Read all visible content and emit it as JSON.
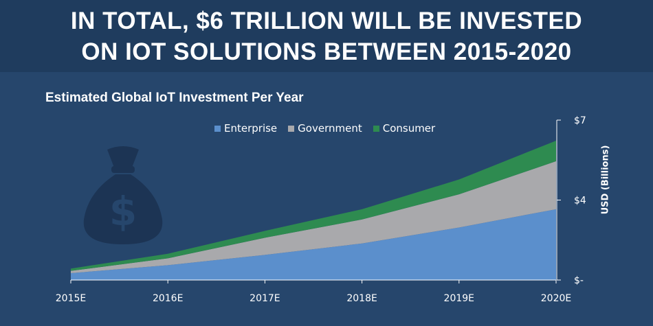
{
  "headline": {
    "line1": "IN TOTAL, $6 TRILLION WILL BE INVESTED",
    "line2": "ON IOT SOLUTIONS BETWEEN 2015-2020"
  },
  "colors": {
    "background": "#26466c",
    "header_band": "#1f3c5e",
    "enterprise": "#5b8fcc",
    "government": "#a9a9ac",
    "consumer": "#2e8b50",
    "money_bag": "#1c3454"
  },
  "decor": {
    "icon": "money-bag-icon"
  },
  "chart_data": {
    "type": "area",
    "stacked": true,
    "title": "Estimated Global IoT Investment Per Year",
    "xlabel": "",
    "ylabel": "USD (Billions)",
    "categories": [
      "2015E",
      "2016E",
      "2017E",
      "2018E",
      "2019E",
      "2020E"
    ],
    "series": [
      {
        "name": "Enterprise",
        "values": [
          0.3,
          0.65,
          1.1,
          1.6,
          2.3,
          3.1
        ]
      },
      {
        "name": "Government",
        "values": [
          0.1,
          0.3,
          0.75,
          1.05,
          1.45,
          2.1
        ]
      },
      {
        "name": "Consumer",
        "values": [
          0.1,
          0.2,
          0.3,
          0.45,
          0.65,
          0.9
        ]
      }
    ],
    "ylim": [
      0,
      7
    ],
    "yticks": [
      {
        "value": 0,
        "label": "$-"
      },
      {
        "value": 3.5,
        "label": "$4"
      },
      {
        "value": 7,
        "label": "$7"
      }
    ],
    "grid": false,
    "legend_position": "top-center"
  }
}
